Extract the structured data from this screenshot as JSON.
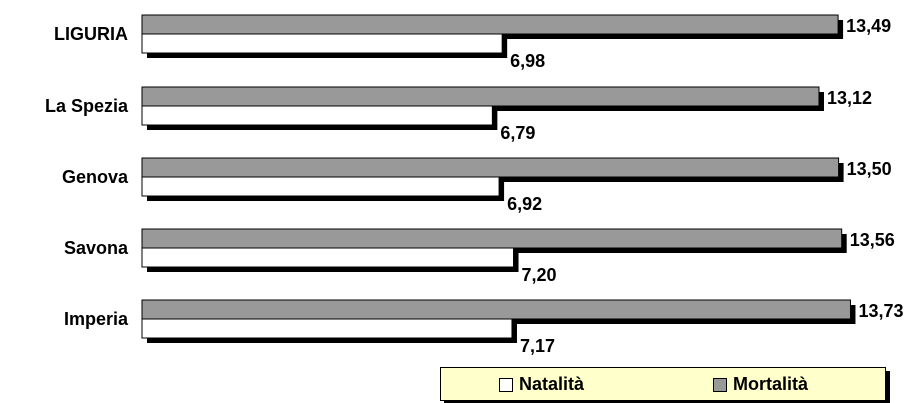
{
  "chart_data": {
    "type": "bar",
    "orientation": "horizontal",
    "categories": [
      "LIGURIA",
      "La Spezia",
      "Genova",
      "Savona",
      "Imperia"
    ],
    "series": [
      {
        "name": "Natalità",
        "color": "#ffffff",
        "values": [
          6.98,
          6.79,
          6.92,
          7.2,
          7.17
        ],
        "labels": [
          "6,98",
          "6,79",
          "6,92",
          "7,20",
          "7,17"
        ]
      },
      {
        "name": "Mortalità",
        "color": "#999999",
        "values": [
          13.49,
          13.12,
          13.5,
          13.56,
          13.73
        ],
        "labels": [
          "13,49",
          "13,12",
          "13,50",
          "13,56",
          "13,73"
        ]
      }
    ],
    "xlim": [
      0,
      14
    ],
    "grid": false,
    "legend_position": "bottom-right"
  }
}
